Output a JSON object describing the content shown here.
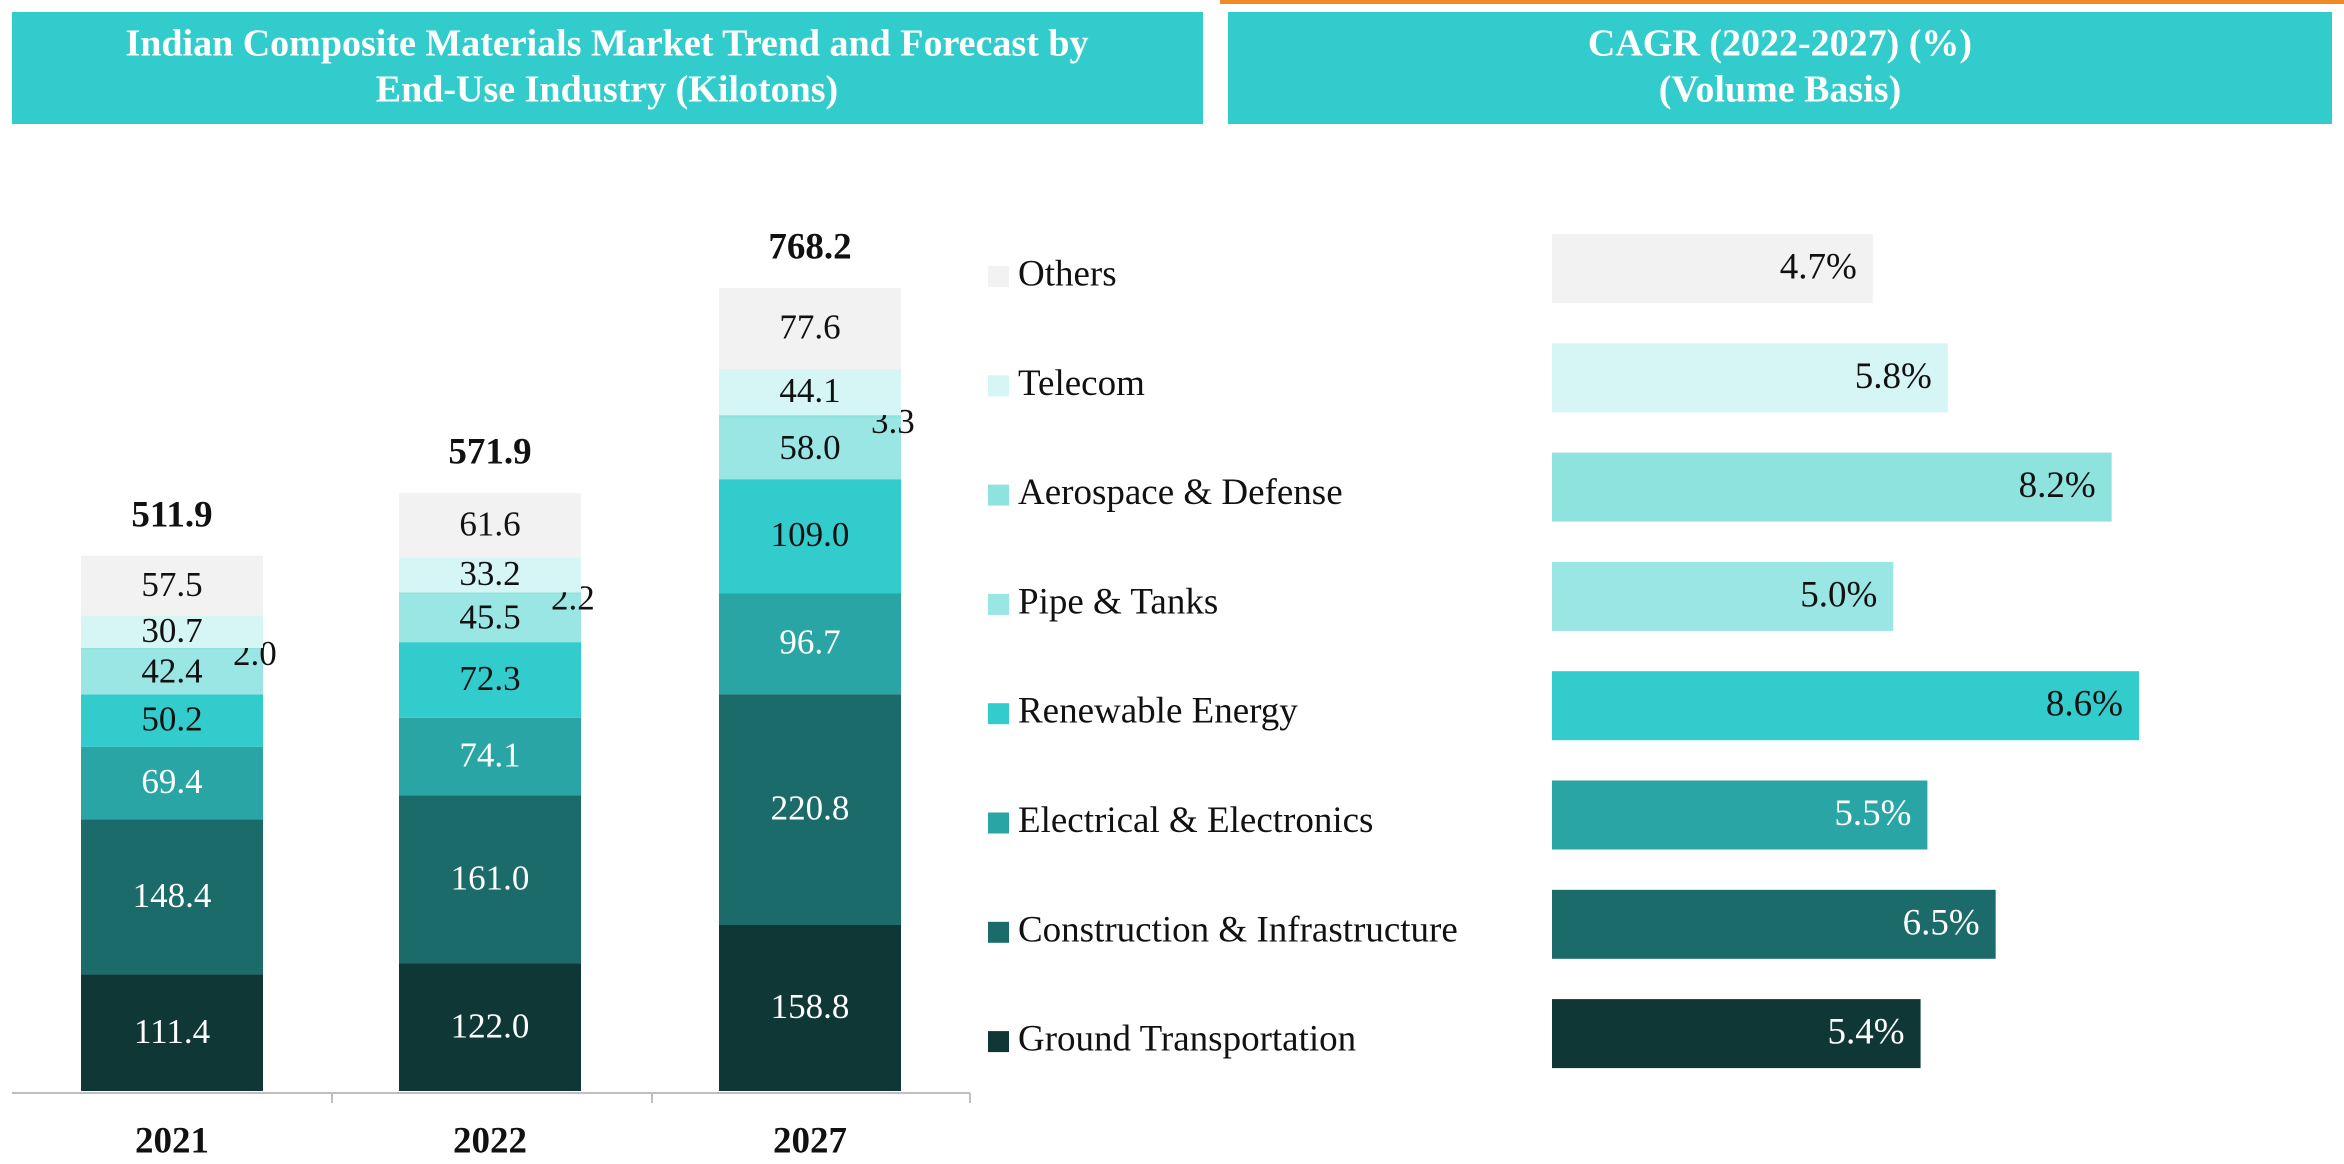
{
  "chart_data": [
    {
      "type": "stacked_bar",
      "title": [
        "Indian Composite Materials Market Trend and Forecast by",
        "End-Use Industry (Kilotons)"
      ],
      "categories": [
        "2021",
        "2022",
        "2027"
      ],
      "totals": [
        511.9,
        571.9,
        768.2
      ],
      "series": [
        {
          "name": "Ground Transportation",
          "color": "#0f3736",
          "values": [
            111.4,
            122.0,
            158.8
          ],
          "value_labels": [
            "111.4",
            "122.0",
            "158.8"
          ]
        },
        {
          "name": "Construction & Infrastructure",
          "color": "#1b6b6b",
          "values": [
            148.4,
            161.0,
            220.8
          ],
          "value_labels": [
            "148.4",
            "161.0",
            "220.8"
          ]
        },
        {
          "name": "Electrical & Electronics",
          "color": "#2aa5a5",
          "values": [
            69.4,
            74.1,
            96.7
          ],
          "value_labels": [
            "69.4",
            "74.1",
            "96.7"
          ]
        },
        {
          "name": "Renewable Energy",
          "color": "#33cccc",
          "values": [
            50.2,
            72.3,
            109.0
          ],
          "value_labels": [
            "50.2",
            "72.3",
            "109.0"
          ]
        },
        {
          "name": "Pipe & Tanks",
          "color": "#99e6e4",
          "values": [
            42.4,
            45.5,
            58.0
          ],
          "value_labels": [
            "42.4",
            "45.5",
            "58.0"
          ]
        },
        {
          "name": "Aerospace & Defense",
          "color": "#8fe3df",
          "values": [
            2.0,
            2.2,
            3.3
          ],
          "value_labels": [
            "2.0",
            "2.2",
            "3.3"
          ]
        },
        {
          "name": "Telecom",
          "color": "#d6f5f5",
          "values": [
            30.7,
            33.2,
            44.1
          ],
          "value_labels": [
            "30.7",
            "33.2",
            "44.1"
          ]
        },
        {
          "name": "Others",
          "color": "#f2f2f2",
          "values": [
            57.5,
            61.6,
            77.6
          ],
          "value_labels": [
            "57.5",
            "61.6",
            "77.6"
          ]
        }
      ]
    },
    {
      "type": "hbar",
      "title": [
        "CAGR (2022-2027) (%)",
        "(Volume Basis)"
      ],
      "values": [
        5.4,
        6.5,
        5.5,
        8.6,
        5.0,
        8.2,
        5.8,
        4.7
      ],
      "value_labels": [
        "5.4%",
        "6.5%",
        "5.5%",
        "8.6%",
        "5.0%",
        "8.2%",
        "5.8%",
        "4.7%"
      ]
    }
  ]
}
